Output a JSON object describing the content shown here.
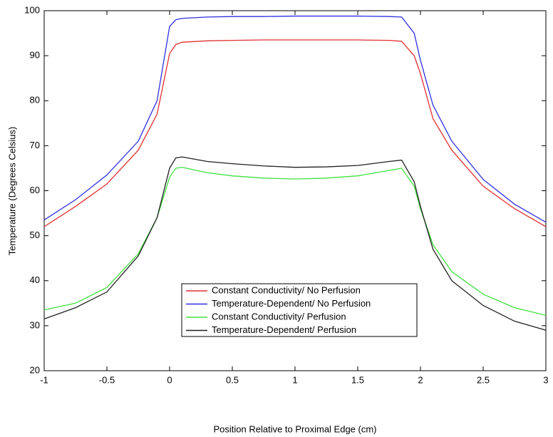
{
  "chart_data": {
    "type": "line",
    "xlabel": "Position Relative to Proximal Edge (cm)",
    "ylabel": "Temperature (Degrees Celsius)",
    "x": [
      -1,
      -0.75,
      -0.5,
      -0.25,
      -0.1,
      0,
      0.05,
      0.1,
      0.3,
      0.5,
      0.75,
      1,
      1.25,
      1.5,
      1.75,
      1.85,
      1.95,
      2,
      2.1,
      2.25,
      2.5,
      2.75,
      3
    ],
    "series": [
      {
        "name": "Constant Conductivity/ No Perfusion",
        "color": "#e03030",
        "values": [
          52,
          56.5,
          61.5,
          69,
          77,
          90.5,
          92.5,
          93,
          93.3,
          93.4,
          93.5,
          93.5,
          93.5,
          93.5,
          93.4,
          93.2,
          90,
          86,
          76,
          69,
          61,
          56,
          52
        ]
      },
      {
        "name": "Temperature-Dependent/ No Perfusion",
        "color": "#3030e0",
        "values": [
          53.5,
          58,
          63.5,
          71,
          80,
          96.5,
          98,
          98.3,
          98.6,
          98.7,
          98.7,
          98.8,
          98.8,
          98.8,
          98.7,
          98.6,
          95,
          89,
          79,
          71,
          62.5,
          57,
          53
        ]
      },
      {
        "name": "Constant Conductivity/ Perfusion",
        "color": "#40e040",
        "values": [
          33.5,
          35,
          38.5,
          46,
          54,
          63,
          65,
          65.2,
          64,
          63.3,
          62.8,
          62.6,
          62.8,
          63.3,
          64.5,
          65,
          61,
          56,
          48,
          42,
          37,
          34,
          32.3
        ]
      },
      {
        "name": "Temperature-Dependent/ Perfusion",
        "color": "#202020",
        "values": [
          31.5,
          34,
          37.5,
          45.5,
          54,
          65,
          67.3,
          67.5,
          66.5,
          66,
          65.5,
          65.2,
          65.3,
          65.6,
          66.5,
          66.8,
          62,
          56.5,
          47,
          40,
          34.5,
          31,
          29
        ]
      }
    ],
    "xlim": [
      -1,
      3
    ],
    "ylim": [
      20,
      100
    ],
    "xticks": [
      -1,
      -0.5,
      0,
      0.5,
      1,
      1.5,
      2,
      2.5,
      3
    ],
    "yticks": [
      20,
      30,
      40,
      50,
      60,
      70,
      80,
      90,
      100
    ],
    "grid": false
  }
}
